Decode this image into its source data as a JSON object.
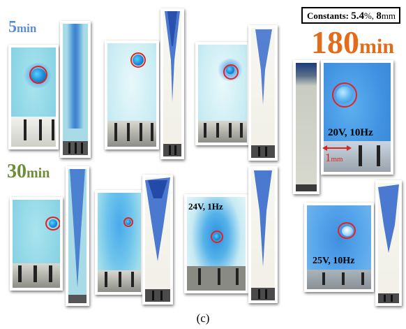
{
  "constants": {
    "label": "Constants:",
    "value1": "5.4",
    "unit1": "%,",
    "value2": "8",
    "unit2": "mm"
  },
  "time_labels": [
    {
      "num": "5",
      "unit": "min",
      "color": "#5b8fd1"
    },
    {
      "num": "30",
      "unit": "min",
      "color": "#6f8d38"
    },
    {
      "num": "180",
      "unit": "min",
      "color": "#e36c1b"
    }
  ],
  "conditions": {
    "a": "24V, 1Hz",
    "b": "20V, 10Hz",
    "c": "25V, 10Hz"
  },
  "scale": {
    "text": "1",
    "unit": "mm",
    "color": "#d8261e"
  },
  "caption": "(c)",
  "colors": {
    "blue_ink": "#1f5fc8",
    "ring": "#e02424",
    "cyan": "#8fd6e6"
  }
}
